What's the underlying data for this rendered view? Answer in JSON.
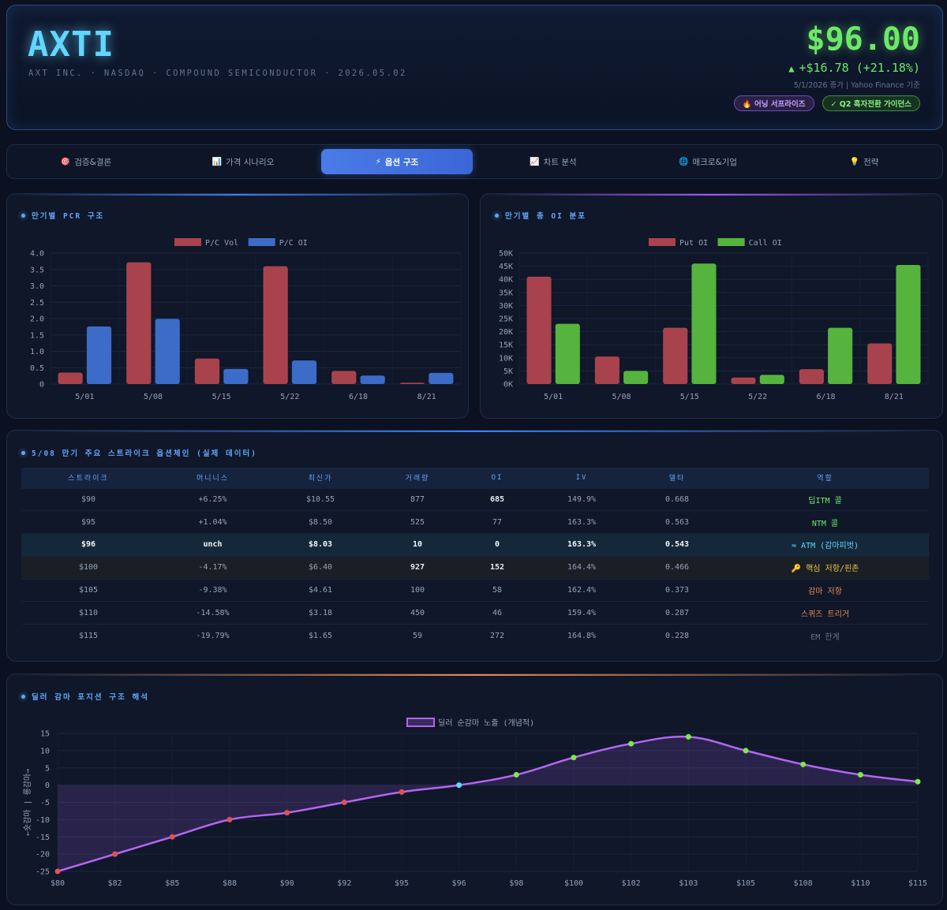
{
  "header": {
    "ticker": "AXTI",
    "subline": "AXT INC. · NASDAQ · COMPOUND SEMICONDUCTOR · 2026.05.02",
    "price": "$96.00",
    "change": "+$16.78 (+21.18%)",
    "source": "5/1/2026 종가 | Yahoo Finance 기준",
    "badges": [
      "🔥 어닝 서프라이즈",
      "✓ Q2 흑자전환 가이던스"
    ]
  },
  "tabs": [
    {
      "icon": "🎯",
      "label": "검증&결론"
    },
    {
      "icon": "📊",
      "label": "가격 시나리오"
    },
    {
      "icon": "⚡",
      "label": "옵션 구조"
    },
    {
      "icon": "📈",
      "label": "차트 분석"
    },
    {
      "icon": "🌐",
      "label": "매크로&기업"
    },
    {
      "icon": "💡",
      "label": "전략"
    }
  ],
  "active_tab": 2,
  "pcr_panel": {
    "title": "만기별 PCR 구조"
  },
  "oi_panel": {
    "title": "만기별 총 OI 분포"
  },
  "chain_panel": {
    "title": "5/08 만기 주요 스트라이크 옵션체인 (실제 데이터)",
    "columns": [
      "스트라이크",
      "머니니스",
      "최신가",
      "거래량",
      "OI",
      "IV",
      "델타",
      "역할"
    ],
    "rows": [
      [
        "$90",
        "+6.25%",
        "$10.55",
        "877",
        "685",
        "149.9%",
        "0.668",
        "딥ITM 콜"
      ],
      [
        "$95",
        "+1.04%",
        "$8.50",
        "525",
        "77",
        "163.3%",
        "0.563",
        "NTM 콜"
      ],
      [
        "$96",
        "unch",
        "$8.03",
        "10",
        "0",
        "163.3%",
        "0.543",
        "≈ ATM (감마피벗)"
      ],
      [
        "$100",
        "-4.17%",
        "$6.40",
        "927",
        "152",
        "164.4%",
        "0.466",
        "🔑 핵심 저항/핀존"
      ],
      [
        "$105",
        "-9.38%",
        "$4.61",
        "100",
        "58",
        "162.4%",
        "0.373",
        "감마 저항"
      ],
      [
        "$110",
        "-14.58%",
        "$3.18",
        "450",
        "46",
        "159.4%",
        "0.287",
        "스퀴즈 트리거"
      ],
      [
        "$115",
        "-19.79%",
        "$1.65",
        "59",
        "272",
        "164.8%",
        "0.228",
        "EM 한계"
      ]
    ]
  },
  "gamma_panel": {
    "title": "딜러 감마 포지션 구조 해석"
  },
  "colors": {
    "put": "#a8434e",
    "vol": "#a8434e",
    "oi_pc": "#3d6bc8",
    "call": "#55b33e",
    "gamma": "#b366f0"
  },
  "chart_data": [
    {
      "type": "bar",
      "categories": [
        "5/01",
        "5/08",
        "5/15",
        "5/22",
        "6/18",
        "8/21"
      ],
      "series": [
        {
          "name": "P/C Vol",
          "values": [
            0.35,
            3.72,
            0.78,
            3.6,
            0.4,
            0.04
          ]
        },
        {
          "name": "P/C OI",
          "values": [
            1.76,
            1.99,
            0.46,
            0.72,
            0.26,
            0.34
          ]
        }
      ],
      "ylim": [
        0,
        4
      ],
      "yticks": [
        "0",
        "0.5",
        "1.0",
        "1.5",
        "2.0",
        "2.5",
        "3.0",
        "3.5",
        "4.0"
      ],
      "legend": "top"
    },
    {
      "type": "bar",
      "categories": [
        "5/01",
        "5/08",
        "5/15",
        "5/22",
        "6/18",
        "8/21"
      ],
      "series": [
        {
          "name": "Put OI",
          "values": [
            41000,
            10500,
            21500,
            2500,
            5700,
            15500
          ]
        },
        {
          "name": "Call OI",
          "values": [
            23000,
            5000,
            46000,
            3500,
            21500,
            45500
          ]
        }
      ],
      "ylim": [
        0,
        50000
      ],
      "yticks": [
        "0K",
        "5K",
        "10K",
        "15K",
        "20K",
        "25K",
        "30K",
        "35K",
        "40K",
        "45K",
        "50K"
      ],
      "legend": "top"
    },
    {
      "type": "area",
      "categories": [
        "$80",
        "$82",
        "$85",
        "$88",
        "$90",
        "$92",
        "$95",
        "$96",
        "$98",
        "$100",
        "$102",
        "$103",
        "$105",
        "$108",
        "$110",
        "$115"
      ],
      "series": [
        {
          "name": "딜러 순감마 노출 (개념적)",
          "values": [
            -25,
            -20,
            -15,
            -10,
            -8,
            -5,
            -2,
            0,
            3,
            8,
            12,
            14,
            10,
            6,
            3,
            1
          ]
        }
      ],
      "ylabel": "←숏감마 | 롱감마→",
      "ylim": [
        -25,
        15
      ],
      "yticks": [
        "-25",
        "-20",
        "-15",
        "-10",
        "-5",
        "0",
        "5",
        "10",
        "15"
      ],
      "legend": "top"
    }
  ]
}
